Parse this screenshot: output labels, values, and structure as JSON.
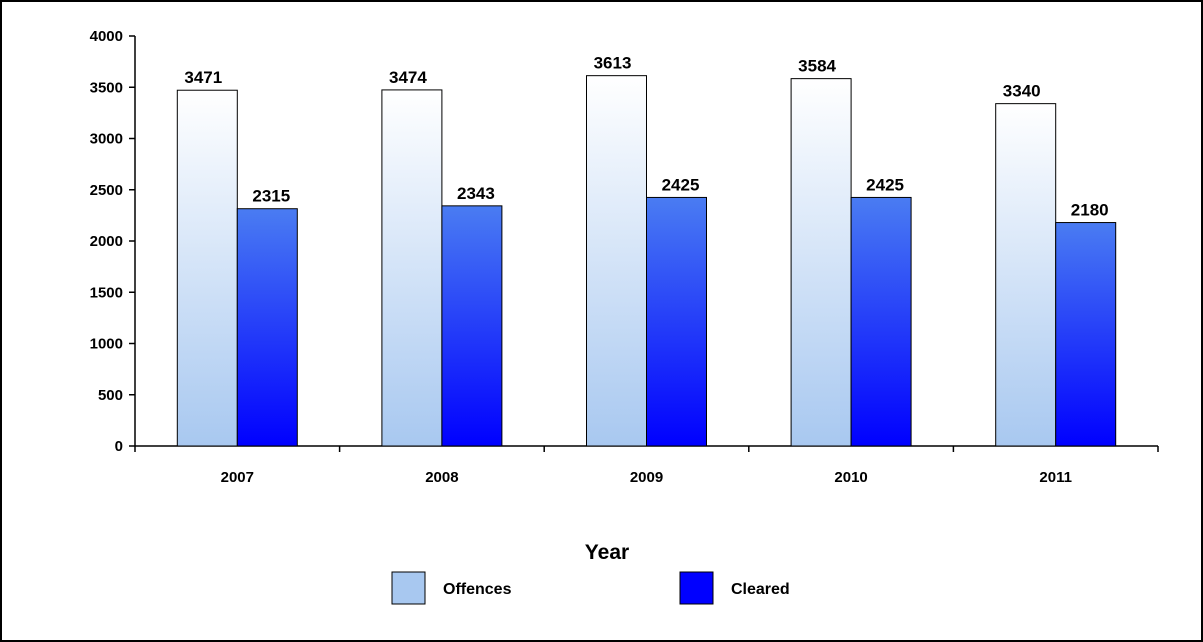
{
  "chart_data": {
    "type": "bar",
    "categories": [
      "2007",
      "2008",
      "2009",
      "2010",
      "2011"
    ],
    "series": [
      {
        "name": "Offences",
        "values": [
          3471,
          3474,
          3613,
          3584,
          3340
        ],
        "color": "#a8c8f0"
      },
      {
        "name": "Cleared",
        "values": [
          2315,
          2343,
          2425,
          2425,
          2180
        ],
        "color": "#0000ff"
      }
    ],
    "title": "",
    "xlabel": "Year",
    "ylabel": "",
    "ylim": [
      0,
      4000
    ],
    "yticks": [
      "0",
      "500",
      "1000",
      "1500",
      "2000",
      "2500",
      "3000",
      "3500",
      "4000"
    ],
    "grid": false,
    "legend_position": "bottom"
  }
}
